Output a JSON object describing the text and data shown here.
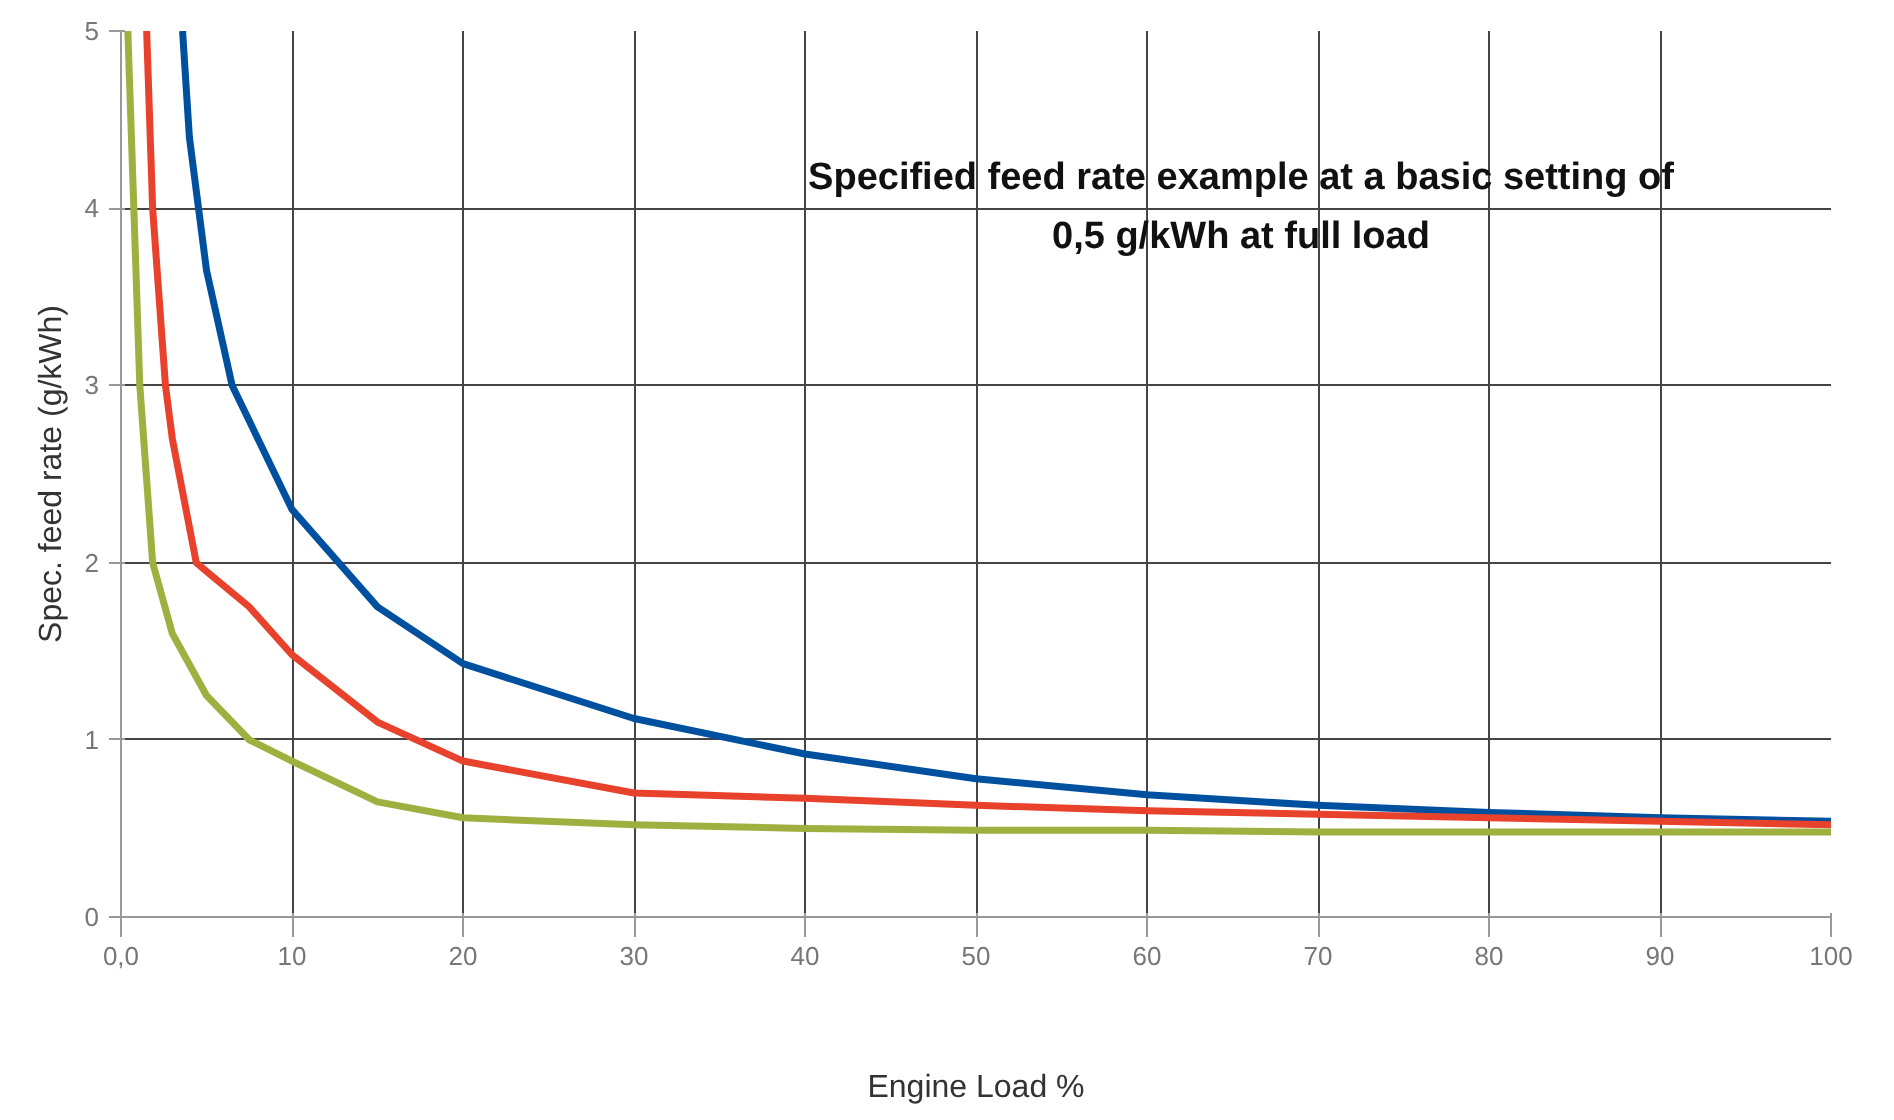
{
  "chart_data": {
    "type": "line",
    "xlabel": "Engine Load %",
    "ylabel": "Spec. feed rate (g/kWh)",
    "xlim": [
      0,
      100
    ],
    "ylim": [
      0,
      5
    ],
    "xticks": [
      {
        "value": 0,
        "label": "0,0"
      },
      10,
      20,
      30,
      40,
      50,
      60,
      70,
      80,
      90,
      100
    ],
    "yticks": [
      0,
      1,
      2,
      3,
      4,
      5
    ],
    "grid": true,
    "marker": "none",
    "line_style": "solid",
    "annotations": [
      "Specified feed rate example at a basic setting of\n0,5 g/kWh at full load"
    ],
    "series": [
      {
        "color": "#0050a0",
        "x": [
          3.6,
          4,
          5,
          6.5,
          7.5,
          10,
          15,
          20,
          30,
          40,
          50,
          60,
          70,
          80,
          90,
          100
        ],
        "values": [
          5,
          4.4,
          3.65,
          3,
          2.8,
          2.3,
          1.75,
          1.43,
          1.12,
          0.92,
          0.78,
          0.69,
          0.63,
          0.59,
          0.56,
          0.54
        ]
      },
      {
        "color": "#e8412c",
        "x": [
          1.5,
          1.85,
          2.6,
          3,
          4.4,
          5,
          7.5,
          10,
          15,
          20,
          30,
          40,
          50,
          60,
          70,
          80,
          90,
          100
        ],
        "values": [
          5,
          4,
          3,
          2.7,
          2,
          1.95,
          1.75,
          1.48,
          1.1,
          0.88,
          0.7,
          0.67,
          0.63,
          0.6,
          0.58,
          0.56,
          0.54,
          0.52
        ]
      },
      {
        "color": "#a0b040",
        "x": [
          0.4,
          1.1,
          1.85,
          3,
          5,
          7.5,
          10,
          15,
          20,
          30,
          40,
          50,
          60,
          70,
          80,
          90,
          100
        ],
        "values": [
          5,
          3,
          2,
          1.6,
          1.25,
          1.0,
          0.88,
          0.65,
          0.56,
          0.52,
          0.5,
          0.49,
          0.49,
          0.48,
          0.48,
          0.48,
          0.48
        ]
      }
    ]
  }
}
